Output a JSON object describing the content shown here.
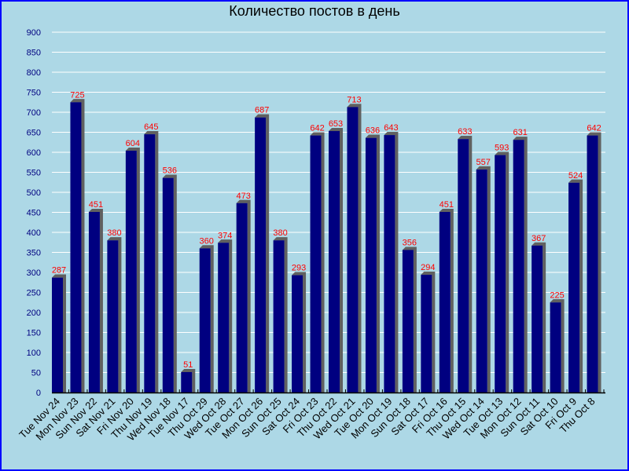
{
  "chart_data": {
    "type": "bar",
    "title": "Количество постов в день",
    "xlabel": "",
    "ylabel": "",
    "ylim": [
      0,
      900
    ],
    "yticks": [
      0,
      50,
      100,
      150,
      200,
      250,
      300,
      350,
      400,
      450,
      500,
      550,
      600,
      650,
      700,
      750,
      800,
      850,
      900
    ],
    "grid": true,
    "categories": [
      "Tue Nov 24",
      "Mon Nov 23",
      "Sun Nov 22",
      "Sat Nov 21",
      "Fri Nov 20",
      "Thu Nov 19",
      "Wed Nov 18",
      "Tue Nov 17",
      "Thu Oct 29",
      "Wed Oct 28",
      "Tue Oct 27",
      "Mon Oct 26",
      "Sun Oct 25",
      "Sat Oct 24",
      "Fri Oct 23",
      "Thu Oct 22",
      "Wed Oct 21",
      "Tue Oct 20",
      "Mon Oct 19",
      "Sun Oct 18",
      "Sat Oct 17",
      "Fri Oct 16",
      "Thu Oct 15",
      "Wed Oct 14",
      "Tue Oct 13",
      "Mon Oct 12",
      "Sun Oct 11",
      "Sat Oct 10",
      "Fri Oct 9",
      "Thu Oct 8"
    ],
    "values": [
      287,
      725,
      451,
      380,
      604,
      645,
      536,
      51,
      360,
      374,
      473,
      687,
      380,
      293,
      642,
      653,
      713,
      636,
      643,
      356,
      294,
      451,
      633,
      557,
      593,
      631,
      367,
      225,
      524,
      642
    ],
    "colors": {
      "bar": "#000080",
      "shadow": "#606060",
      "label": "#ff0000",
      "axis_text": "#000080",
      "background": "#add8e6",
      "grid": "#ffffff",
      "border": "#0000ff"
    }
  }
}
